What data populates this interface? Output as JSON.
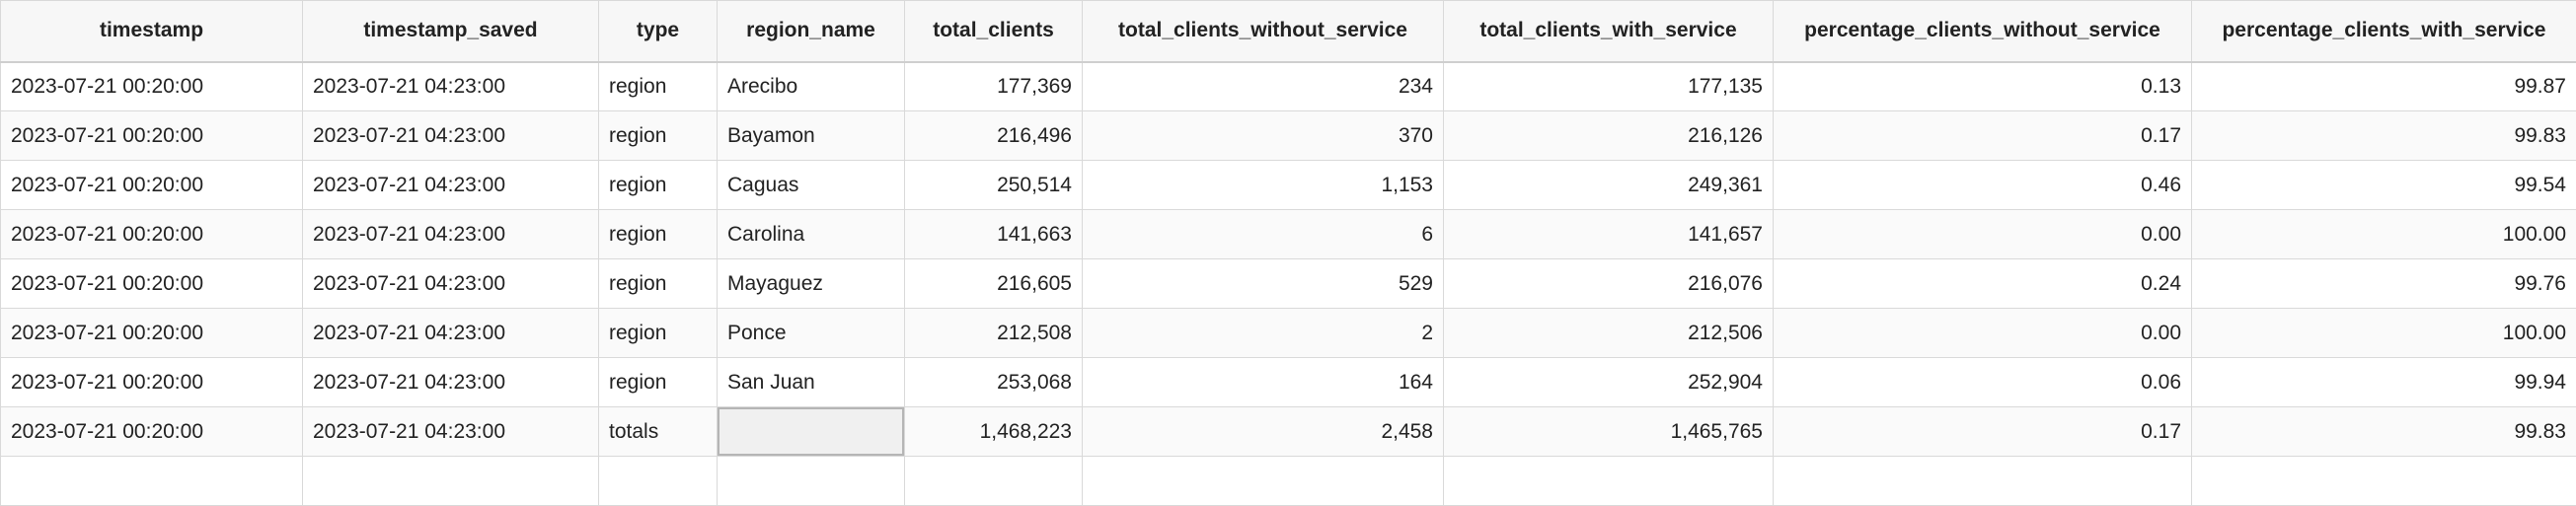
{
  "columns": [
    {
      "label": "timestamp",
      "align": "left"
    },
    {
      "label": "timestamp_saved",
      "align": "left"
    },
    {
      "label": "type",
      "align": "left"
    },
    {
      "label": "region_name",
      "align": "left"
    },
    {
      "label": "total_clients",
      "align": "right"
    },
    {
      "label": "total_clients_without_service",
      "align": "right"
    },
    {
      "label": "total_clients_with_service",
      "align": "right"
    },
    {
      "label": "percentage_clients_without_service",
      "align": "right"
    },
    {
      "label": "percentage_clients_with_service",
      "align": "right"
    }
  ],
  "rows": [
    [
      "2023-07-21 00:20:00",
      "2023-07-21 04:23:00",
      "region",
      "Arecibo",
      "177,369",
      "234",
      "177,135",
      "0.13",
      "99.87"
    ],
    [
      "2023-07-21 00:20:00",
      "2023-07-21 04:23:00",
      "region",
      "Bayamon",
      "216,496",
      "370",
      "216,126",
      "0.17",
      "99.83"
    ],
    [
      "2023-07-21 00:20:00",
      "2023-07-21 04:23:00",
      "region",
      "Caguas",
      "250,514",
      "1,153",
      "249,361",
      "0.46",
      "99.54"
    ],
    [
      "2023-07-21 00:20:00",
      "2023-07-21 04:23:00",
      "region",
      "Carolina",
      "141,663",
      "6",
      "141,657",
      "0.00",
      "100.00"
    ],
    [
      "2023-07-21 00:20:00",
      "2023-07-21 04:23:00",
      "region",
      "Mayaguez",
      "216,605",
      "529",
      "216,076",
      "0.24",
      "99.76"
    ],
    [
      "2023-07-21 00:20:00",
      "2023-07-21 04:23:00",
      "region",
      "Ponce",
      "212,508",
      "2",
      "212,506",
      "0.00",
      "100.00"
    ],
    [
      "2023-07-21 00:20:00",
      "2023-07-21 04:23:00",
      "region",
      "San Juan",
      "253,068",
      "164",
      "252,904",
      "0.06",
      "99.94"
    ],
    [
      "2023-07-21 00:20:00",
      "2023-07-21 04:23:00",
      "totals",
      "",
      "1,468,223",
      "2,458",
      "1,465,765",
      "0.17",
      "99.83"
    ]
  ],
  "selected_cell": {
    "row": 7,
    "col": 3
  }
}
